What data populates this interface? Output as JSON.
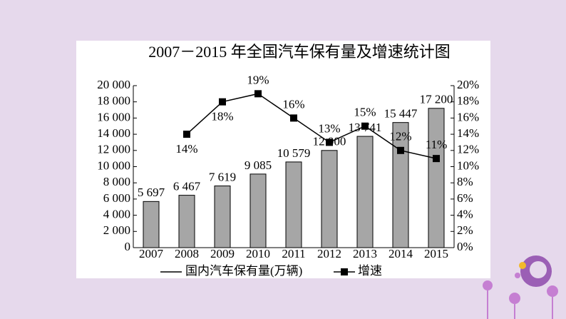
{
  "chart_data": {
    "type": "bar",
    "title": "2007－2015 年全国汽车保有量及增速统计图",
    "categories": [
      "2007",
      "2008",
      "2009",
      "2010",
      "2011",
      "2012",
      "2013",
      "2014",
      "2015"
    ],
    "series": [
      {
        "name": "国内汽车保有量(万辆)",
        "color": "#a6a6a6",
        "values": [
          5697,
          6467,
          7619,
          9085,
          10579,
          12000,
          13741,
          15447,
          17200
        ],
        "value_labels": [
          "5 697",
          "6 467",
          "7 619",
          "9 085",
          "10 579",
          "12 000",
          "13 741",
          "15 447",
          "17 200"
        ]
      },
      {
        "name": "增速",
        "color": "#000000",
        "axis": "y2",
        "type": "line",
        "values": [
          null,
          14,
          18,
          19,
          16,
          13,
          15,
          12,
          11
        ],
        "value_labels": [
          null,
          "14%",
          "18%",
          "19%",
          "16%",
          "13%",
          "15%",
          "12%",
          "11%"
        ]
      }
    ],
    "ylim": [
      0,
      20000
    ],
    "yticks": [
      {
        "value": 0,
        "label": "0"
      },
      {
        "value": 2000,
        "label": "2 000"
      },
      {
        "value": 4000,
        "label": "4 000"
      },
      {
        "value": 6000,
        "label": "6 000"
      },
      {
        "value": 8000,
        "label": "8 000"
      },
      {
        "value": 10000,
        "label": "10 000"
      },
      {
        "value": 12000,
        "label": "12 000"
      },
      {
        "value": 14000,
        "label": "14 000"
      },
      {
        "value": 16000,
        "label": "16 000"
      },
      {
        "value": 18000,
        "label": "18 000"
      },
      {
        "value": 20000,
        "label": "20 000"
      }
    ],
    "y2lim": [
      0,
      20
    ],
    "y2ticks": [
      {
        "value": 0,
        "label": "0%"
      },
      {
        "value": 2,
        "label": "2%"
      },
      {
        "value": 4,
        "label": "4%"
      },
      {
        "value": 6,
        "label": "6%"
      },
      {
        "value": 8,
        "label": "8%"
      },
      {
        "value": 10,
        "label": "10%"
      },
      {
        "value": 12,
        "label": "12%"
      },
      {
        "value": 14,
        "label": "14%"
      },
      {
        "value": 16,
        "label": "16%"
      },
      {
        "value": 18,
        "label": "18%"
      },
      {
        "value": 20,
        "label": "20%"
      }
    ],
    "grid": false
  }
}
